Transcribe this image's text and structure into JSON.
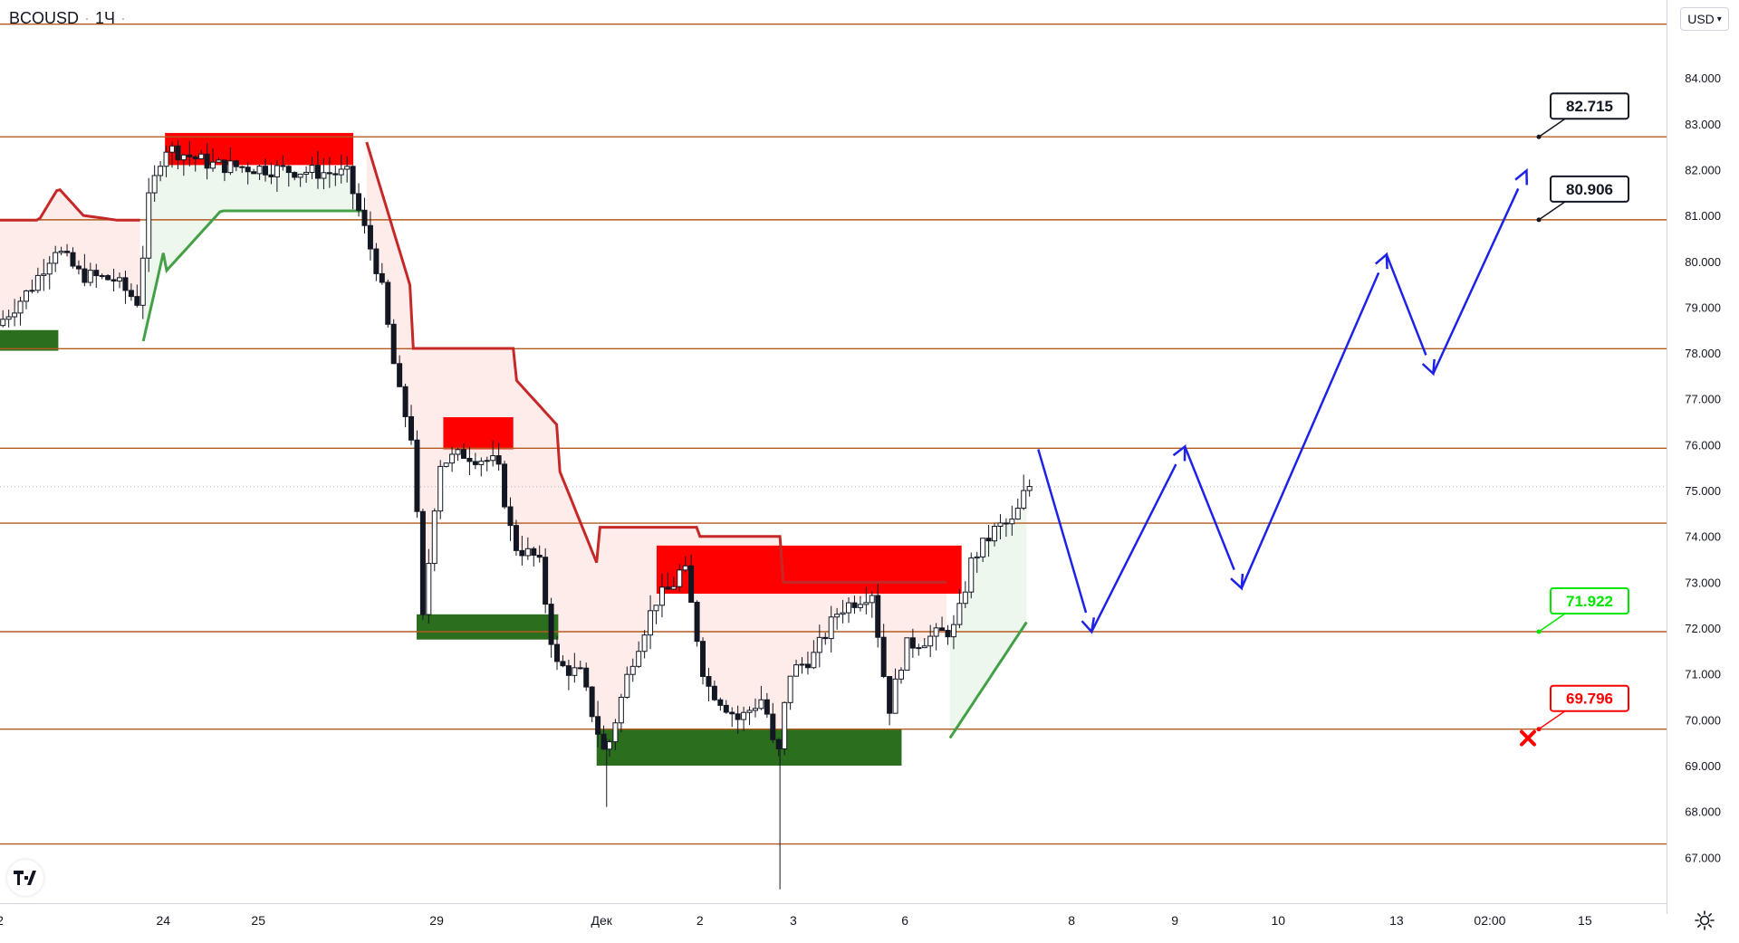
{
  "header": {
    "symbol": "BCOUSD",
    "interval": "1Ч",
    "currency": "USD"
  },
  "colors": {
    "level_line": "#b35c1e",
    "up_candle": "#131722",
    "resistance_zone": "#ff0000",
    "support_zone": "#2b6e1e",
    "trail_red": "#c62828",
    "trail_green": "#43a047",
    "projection": "#1e22e6",
    "label_green": "#00e600",
    "label_red": "#ff0000"
  },
  "chart_data": {
    "type": "candlestick",
    "ylim": [
      66.0,
      85.7
    ],
    "y_ticks": [
      "84.000",
      "83.000",
      "82.000",
      "81.000",
      "80.000",
      "79.000",
      "78.000",
      "77.000",
      "76.000",
      "75.000",
      "74.000",
      "73.000",
      "72.000",
      "71.000",
      "70.000",
      "69.000",
      "68.000",
      "67.000"
    ],
    "x_ticks": [
      {
        "label": "2",
        "pos": 0.0
      },
      {
        "label": "24",
        "pos": 0.098
      },
      {
        "label": "25",
        "pos": 0.155
      },
      {
        "label": "29",
        "pos": 0.262
      },
      {
        "label": "Дек",
        "pos": 0.361
      },
      {
        "label": "2",
        "pos": 0.42
      },
      {
        "label": "3",
        "pos": 0.476
      },
      {
        "label": "6",
        "pos": 0.543
      },
      {
        "label": "8",
        "pos": 0.643
      },
      {
        "label": "9",
        "pos": 0.705
      },
      {
        "label": "10",
        "pos": 0.767
      },
      {
        "label": "13",
        "pos": 0.838
      },
      {
        "label": "02:00",
        "pos": 0.894
      },
      {
        "label": "15",
        "pos": 0.951
      }
    ],
    "levels": [
      "85.173",
      "82.715",
      "80.906",
      "78.095",
      "75.922",
      "74.289",
      "71.922",
      "69.796",
      "67.291"
    ],
    "current_price": "75.084",
    "price_path": [
      [
        0.0,
        78.6
      ],
      [
        0.02,
        79.4
      ],
      [
        0.035,
        80.3
      ],
      [
        0.05,
        79.7
      ],
      [
        0.07,
        79.6
      ],
      [
        0.085,
        79.1
      ],
      [
        0.09,
        81.2
      ],
      [
        0.1,
        82.5
      ],
      [
        0.13,
        82.1
      ],
      [
        0.17,
        82.0
      ],
      [
        0.21,
        81.9
      ],
      [
        0.23,
        79.6
      ],
      [
        0.24,
        77.3
      ],
      [
        0.25,
        76.0
      ],
      [
        0.255,
        72.0
      ],
      [
        0.265,
        75.6
      ],
      [
        0.28,
        75.8
      ],
      [
        0.3,
        75.6
      ],
      [
        0.31,
        73.8
      ],
      [
        0.325,
        73.5
      ],
      [
        0.335,
        71.2
      ],
      [
        0.35,
        71.0
      ],
      [
        0.365,
        69.2
      ],
      [
        0.38,
        71.2
      ],
      [
        0.395,
        72.6
      ],
      [
        0.405,
        72.9
      ],
      [
        0.412,
        73.4
      ],
      [
        0.425,
        70.8
      ],
      [
        0.445,
        70.0
      ],
      [
        0.46,
        70.5
      ],
      [
        0.468,
        69.0
      ],
      [
        0.475,
        71.0
      ],
      [
        0.49,
        71.4
      ],
      [
        0.505,
        72.4
      ],
      [
        0.515,
        72.6
      ],
      [
        0.525,
        72.8
      ],
      [
        0.535,
        70.2
      ],
      [
        0.545,
        71.6
      ],
      [
        0.56,
        71.8
      ],
      [
        0.575,
        72.0
      ],
      [
        0.585,
        73.5
      ],
      [
        0.6,
        74.2
      ],
      [
        0.61,
        74.3
      ],
      [
        0.618,
        75.1
      ]
    ],
    "projection": [
      [
        0.623,
        75.9
      ],
      [
        0.655,
        71.92
      ],
      [
        0.711,
        75.96
      ],
      [
        0.745,
        72.87
      ],
      [
        0.832,
        80.15
      ],
      [
        0.86,
        77.55
      ],
      [
        0.916,
        81.98
      ]
    ],
    "zones": [
      {
        "kind": "resistance",
        "x0": 0.099,
        "x1": 0.212,
        "y0": 82.1,
        "y1": 82.8
      },
      {
        "kind": "support",
        "x0": 0.0,
        "x1": 0.035,
        "y0": 78.05,
        "y1": 78.5
      },
      {
        "kind": "resistance",
        "x0": 0.266,
        "x1": 0.308,
        "y0": 75.9,
        "y1": 76.6
      },
      {
        "kind": "support",
        "x0": 0.25,
        "x1": 0.335,
        "y0": 71.75,
        "y1": 72.3
      },
      {
        "kind": "resistance",
        "x0": 0.394,
        "x1": 0.577,
        "y0": 72.75,
        "y1": 73.8
      },
      {
        "kind": "support",
        "x0": 0.358,
        "x1": 0.541,
        "y0": 69.0,
        "y1": 69.8
      }
    ],
    "callouts": [
      {
        "text": "82.715",
        "value": 82.715,
        "style": "dark"
      },
      {
        "text": "80.906",
        "value": 80.906,
        "style": "dark"
      },
      {
        "text": "71.922",
        "value": 71.922,
        "style": "green"
      },
      {
        "text": "69.796",
        "value": 69.796,
        "style": "red"
      }
    ],
    "stop_marker_value": 69.6
  }
}
